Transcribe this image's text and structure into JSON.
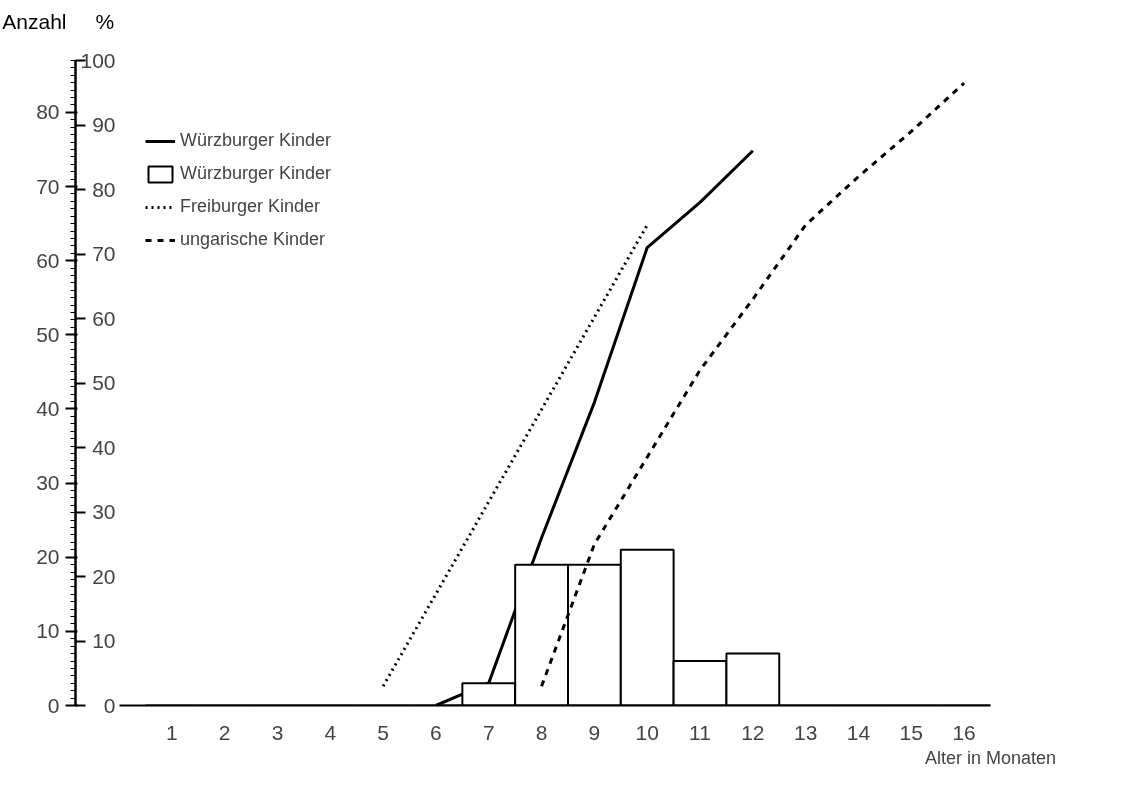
{
  "chart_data": {
    "type": "bar",
    "xlabel": "Alter in Monaten",
    "ylabel": "Anzahl",
    "y2label": "%",
    "x": [
      1,
      2,
      3,
      4,
      5,
      6,
      7,
      8,
      9,
      10,
      11,
      12,
      13,
      14,
      15,
      16
    ],
    "series": [
      {
        "name": "Würzburger Kinder",
        "type": "line",
        "line_style": "solid",
        "color": "#000000",
        "axis": "y2",
        "x": [
          6,
          7,
          8,
          9,
          10,
          11,
          12
        ],
        "values": [
          0,
          3.5,
          26,
          47,
          71,
          78,
          86
        ]
      },
      {
        "name": "Würzburger Kinder",
        "color": "#000000",
        "values": [
          0,
          0,
          0,
          0,
          0,
          0,
          3,
          19,
          19,
          21,
          6,
          7,
          0,
          0,
          0,
          0
        ]
      },
      {
        "name": "Freiburger Kinder",
        "type": "line",
        "line_style": "dotted",
        "color": "#000000",
        "axis": "y2",
        "x": [
          5,
          10
        ],
        "values": [
          3,
          74.5
        ]
      },
      {
        "name": "ungarische Kinder",
        "type": "line",
        "line_style": "dashed",
        "color": "#000000",
        "axis": "y2",
        "x": [
          8,
          9,
          10,
          11,
          12,
          13,
          14,
          15,
          16
        ],
        "values": [
          3,
          25,
          38.5,
          52,
          63,
          74.5,
          82,
          89,
          96.5
        ]
      }
    ],
    "xlim": [
      0,
      16.5
    ],
    "xticks": [
      1,
      2,
      3,
      4,
      5,
      6,
      7,
      8,
      9,
      10,
      11,
      12,
      13,
      14,
      15,
      16
    ],
    "ylim": [
      0,
      87
    ],
    "yticks": [
      0,
      10,
      20,
      30,
      40,
      50,
      60,
      70,
      80
    ],
    "y2lim": [
      0,
      100
    ],
    "y2ticks": [
      0,
      10,
      20,
      30,
      40,
      50,
      60,
      70,
      80,
      90,
      100
    ],
    "grid": false,
    "legend": "top left"
  }
}
